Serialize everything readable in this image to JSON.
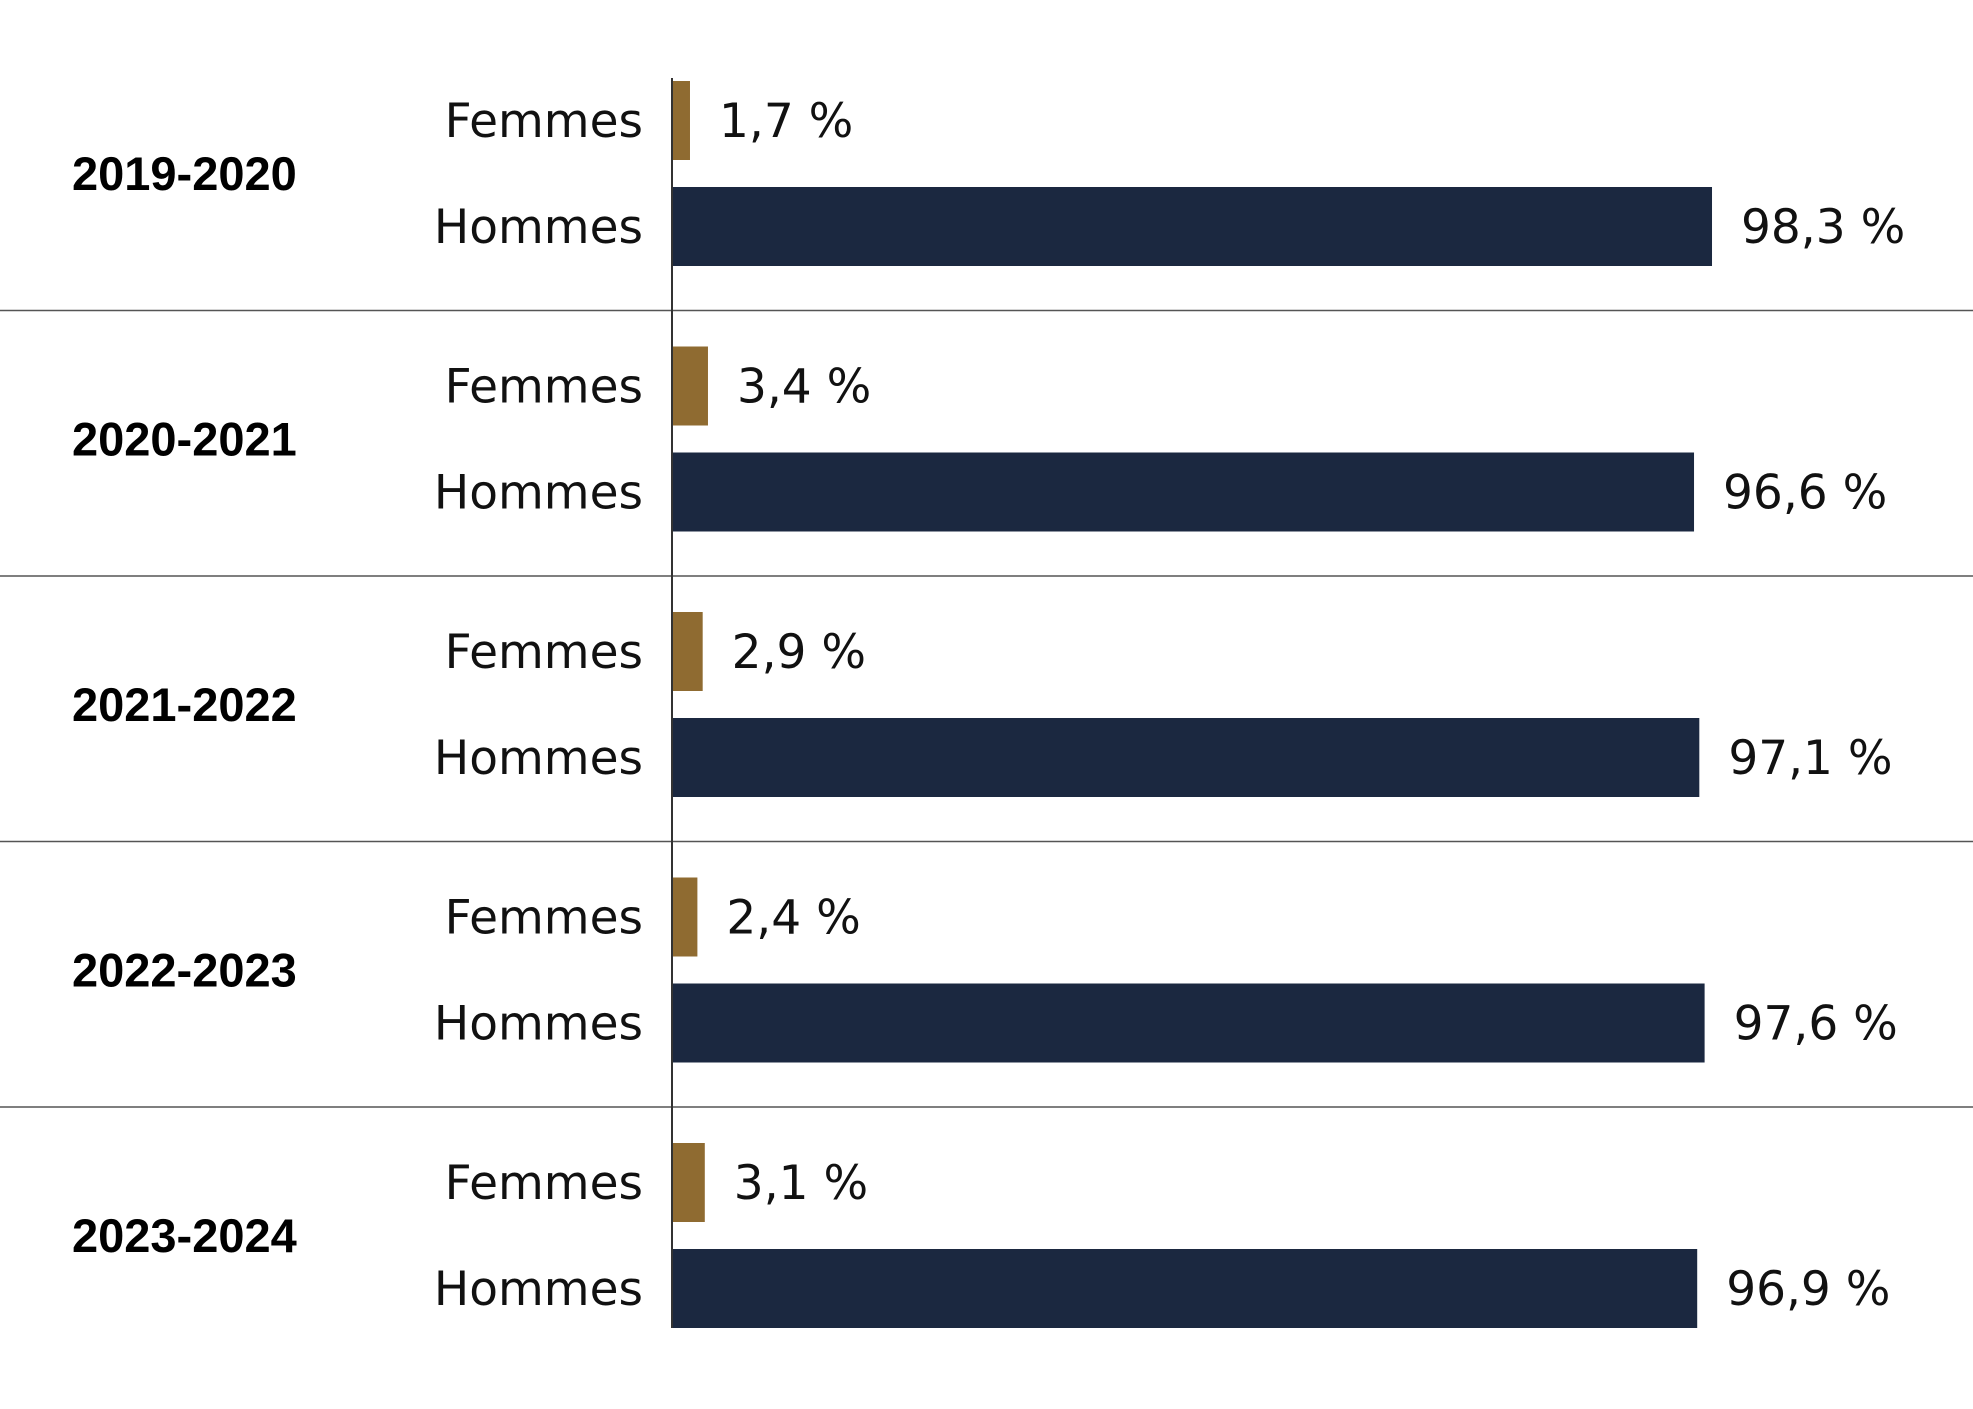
{
  "chart_data": {
    "type": "bar",
    "orientation": "horizontal",
    "grouped": true,
    "categories": [
      "2019-2020",
      "2020-2021",
      "2021-2022",
      "2022-2023",
      "2023-2024"
    ],
    "series": [
      {
        "name": "Femmes",
        "color": "#8f6b31",
        "values": [
          1.7,
          3.4,
          2.9,
          2.4,
          3.1
        ],
        "labels": [
          "1,7 %",
          "3,4 %",
          "2,9 %",
          "2,4 %",
          "3,1 %"
        ]
      },
      {
        "name": "Hommes",
        "color": "#1b2840",
        "values": [
          98.3,
          96.6,
          97.1,
          97.6,
          96.9
        ],
        "labels": [
          "98,3 %",
          "96,6 %",
          "97,1 %",
          "97,6 %",
          "96,9 %"
        ]
      }
    ],
    "xlim": [
      0,
      100
    ],
    "grid": false,
    "legend": "none",
    "title": "",
    "xlabel": "",
    "ylabel": ""
  }
}
